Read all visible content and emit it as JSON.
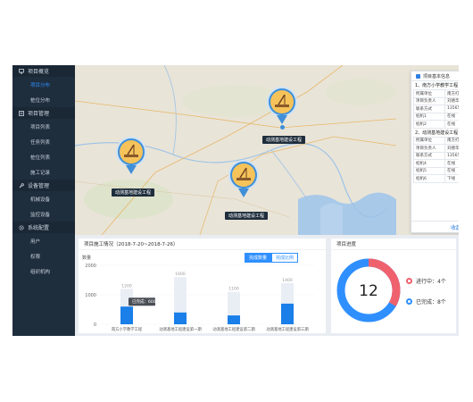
{
  "sidebar": {
    "groups": [
      {
        "label": "项目概览",
        "icon": "monitor-icon",
        "items": [
          {
            "label": "项目分布",
            "active": true
          },
          {
            "label": "桩位分布",
            "active": false
          }
        ]
      },
      {
        "label": "项目管理",
        "icon": "list-icon",
        "items": [
          {
            "label": "项目列表"
          },
          {
            "label": "任务列表"
          },
          {
            "label": "桩位列表"
          },
          {
            "label": "施工记录"
          }
        ]
      },
      {
        "label": "设备管理",
        "icon": "wrench-icon",
        "items": [
          {
            "label": "机械设备"
          },
          {
            "label": "监控设备"
          }
        ]
      },
      {
        "label": "系统配置",
        "icon": "gear-icon",
        "items": [
          {
            "label": "用户"
          },
          {
            "label": "权限"
          },
          {
            "label": "组织机构"
          }
        ]
      }
    ]
  },
  "map": {
    "pins": [
      {
        "label": "动测基地建设工程"
      },
      {
        "label": "动测基地建设工程"
      },
      {
        "label": "动测基地建设工程"
      }
    ]
  },
  "info_panel": {
    "title": "项目基本信息",
    "projects": [
      {
        "name": "1、南方小学教学工程",
        "rows": [
          {
            "k": "所属单位",
            "v": "南方打桩有限公司",
            "status": ""
          },
          {
            "k": "项目负责人",
            "v": "刘德华",
            "status": ""
          },
          {
            "k": "联系方式",
            "v": "13565845564",
            "status": ""
          },
          {
            "k": "桩机1",
            "v": "在线",
            "status": "online"
          },
          {
            "k": "桩机2",
            "v": "在线",
            "status": "online"
          }
        ]
      },
      {
        "name": "2、动测基地建设工程",
        "rows": [
          {
            "k": "所属单位",
            "v": "南方打桩有限公司",
            "status": ""
          },
          {
            "k": "项目负责人",
            "v": "刘德华",
            "status": ""
          },
          {
            "k": "联系方式",
            "v": "13565845564",
            "status": ""
          },
          {
            "k": "桩机4",
            "v": "在线",
            "status": "online"
          },
          {
            "k": "桩机5",
            "v": "在线",
            "status": "online"
          },
          {
            "k": "桩机6",
            "v": "下线",
            "status": "offline"
          }
        ]
      }
    ],
    "close_label": "收起"
  },
  "construction": {
    "title": "项目施工情况（2018-7-20~2018-7-26）",
    "tabs": [
      {
        "label": "完成数量",
        "active": true
      },
      {
        "label": "完成比例",
        "active": false
      }
    ],
    "y_axis_title": "数量",
    "tooltip": "已完成：600"
  },
  "progress": {
    "title": "项目进度",
    "total": "12",
    "legend": [
      {
        "label": "进行中：4个",
        "color": "#f0616e"
      },
      {
        "label": "已完成：8个",
        "color": "#2f8fff"
      }
    ]
  },
  "colors": {
    "accent": "#2f8fff",
    "sidebar_bg": "#1f2e3d",
    "in_progress": "#f0616e"
  },
  "chart_data": {
    "type": "bar",
    "title": "项目施工情况（2018-7-20~2018-7-26）",
    "categories": [
      "南方小学教学工程",
      "动测基地工程建设第一期",
      "动测基地工程建设第二期",
      "动测基地工程建设第三期"
    ],
    "series": [
      {
        "name": "总量",
        "values": [
          1200,
          1600,
          1100,
          1400
        ],
        "color": "#e9eef5"
      },
      {
        "name": "已完成",
        "values": [
          600,
          400,
          300,
          700
        ],
        "color": "#1a7fe8"
      }
    ],
    "data_labels": [
      "1200",
      "1600",
      "1100",
      "1400"
    ],
    "yticks": [
      "0",
      "1000",
      "2000"
    ],
    "ylim": [
      0,
      2000
    ],
    "ylabel": "数量"
  }
}
